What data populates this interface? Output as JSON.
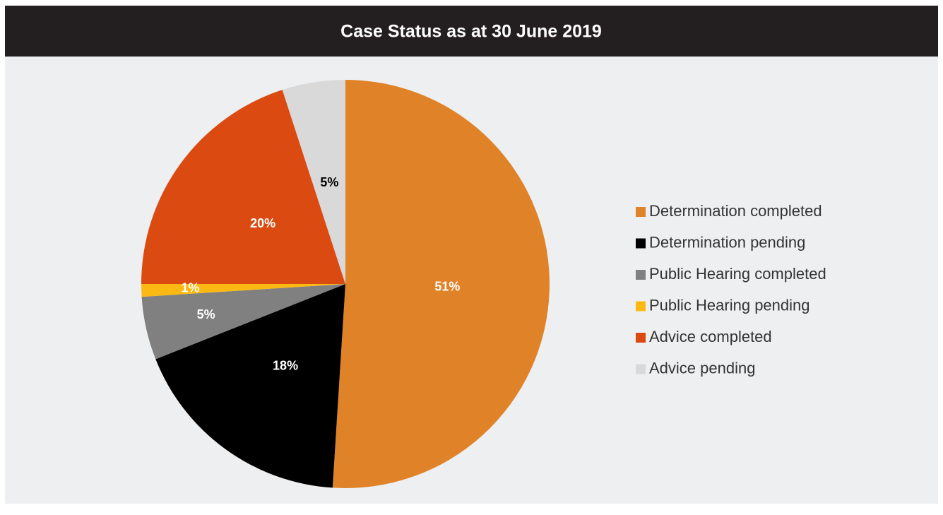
{
  "chart_data": {
    "type": "pie",
    "title": "Case Status as at 30 June 2019",
    "categories": [
      "Determination completed",
      "Determination pending",
      "Public Hearing completed",
      "Public Hearing pending",
      "Advice completed",
      "Advice pending"
    ],
    "values": [
      51,
      18,
      5,
      1,
      20,
      5
    ],
    "value_labels": [
      "51%",
      "18%",
      "5%",
      "1%",
      "20%",
      "5%"
    ],
    "colors": [
      "#e08228",
      "#000000",
      "#808080",
      "#fdb913",
      "#db4a10",
      "#d9d9d9"
    ],
    "label_colors": [
      "#ffffff",
      "#ffffff",
      "#ffffff",
      "#ffffff",
      "#ffffff",
      "#000000"
    ],
    "legend": "right"
  }
}
